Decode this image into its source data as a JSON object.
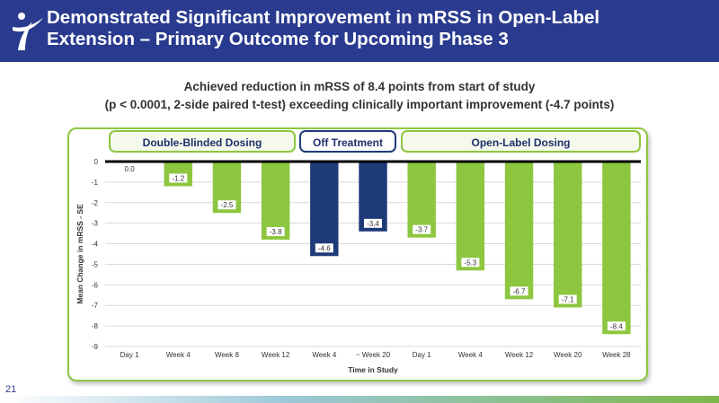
{
  "header": {
    "title_line1": "Demonstrated Significant Improvement in mRSS in Open-Label",
    "title_line2": "Extension – Primary Outcome for Upcoming Phase 3"
  },
  "subtitle": {
    "line1": "Achieved reduction in mRSS of 8.4 points from start of study",
    "line2": "(p < 0.0001, 2-side paired t-test) exceeding clinically important improvement (-4.7 points)"
  },
  "phases": {
    "double_blinded": "Double-Blinded Dosing",
    "off_treatment": "Off Treatment",
    "open_label": "Open-Label Dosing"
  },
  "colors": {
    "header_bg": "#2a3b8f",
    "green": "#8dc63f",
    "navy": "#1f3a78"
  },
  "page_number": "21",
  "chart_data": {
    "type": "bar",
    "categories": [
      "Day 1",
      "Week 4",
      "Week 8",
      "Week 12",
      "Week 4",
      "~ Week 20",
      "Day 1",
      "Week 4",
      "Week 12",
      "Week 20",
      "Week 28"
    ],
    "values": [
      0.0,
      -1.2,
      -2.5,
      -3.8,
      -4.6,
      -3.4,
      -3.7,
      -5.3,
      -6.7,
      -7.1,
      -8.4
    ],
    "value_labels": [
      "0.0",
      "-1.2",
      "-2.5",
      "-3.8",
      "-4.6",
      "-3.4",
      "-3.7",
      "-5.3",
      "-6.7",
      "-7.1",
      "-8.4"
    ],
    "bar_colors": [
      "#8dc63f",
      "#8dc63f",
      "#8dc63f",
      "#8dc63f",
      "#1f3a78",
      "#1f3a78",
      "#8dc63f",
      "#8dc63f",
      "#8dc63f",
      "#8dc63f",
      "#8dc63f"
    ],
    "xlabel": "Time in Study",
    "ylabel": "Mean Change in mRSS - SE",
    "ylim": [
      -9,
      0
    ],
    "yticks": [
      "0",
      "-1",
      "-2",
      "-3",
      "-4",
      "-5",
      "-6",
      "-7",
      "-8",
      "-9"
    ],
    "grid": true
  }
}
